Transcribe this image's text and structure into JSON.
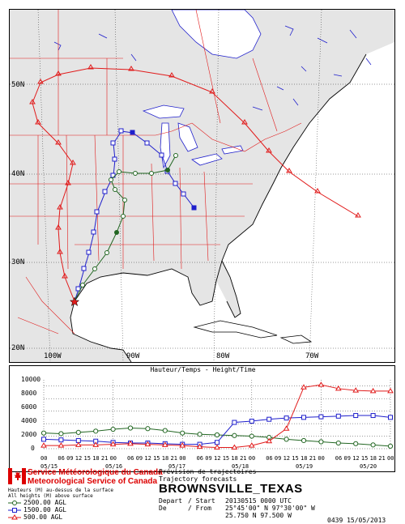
{
  "map": {
    "lat_labels": [
      "50N",
      "40N",
      "30N",
      "20N"
    ],
    "lon_labels": [
      "100W",
      "90W",
      "80W",
      "70W"
    ]
  },
  "chart": {
    "title": "Hauteur/Temps - Height/Time",
    "y_ticks": [
      "10000",
      "8000",
      "6000",
      "4000",
      "2000",
      "0"
    ],
    "hour_labels": [
      "00",
      "06",
      "09",
      "12",
      "15",
      "18",
      "21",
      "00",
      "06",
      "09",
      "12",
      "15",
      "18",
      "21",
      "00",
      "06",
      "09",
      "12",
      "15",
      "18",
      "21",
      "00",
      "06",
      "09",
      "12",
      "15",
      "18",
      "21",
      "00",
      "06",
      "09",
      "12",
      "15",
      "18",
      "21",
      "00"
    ],
    "date_labels": [
      "05/15",
      "05/16",
      "05/17",
      "05/18",
      "05/19",
      "05/20"
    ]
  },
  "chart_data": {
    "type": "line",
    "title": "Hauteur/Temps - Height/Time",
    "ylim": [
      0,
      11000
    ],
    "x_hours": [
      0,
      6,
      12,
      18,
      24,
      30,
      36,
      42,
      48,
      54,
      60,
      66,
      72,
      78,
      84,
      90,
      96,
      102,
      108,
      114,
      120
    ],
    "series": [
      {
        "name": "2500.00 AGL",
        "color": "#226622",
        "values": [
          2500,
          2400,
          2600,
          2800,
          3100,
          3300,
          3200,
          2900,
          2500,
          2300,
          2200,
          2100,
          2000,
          1800,
          1500,
          1300,
          1100,
          900,
          800,
          600,
          400
        ]
      },
      {
        "name": "1500.00 AGL",
        "color": "#1f1fcc",
        "values": [
          1500,
          1400,
          1300,
          1200,
          1000,
          900,
          900,
          800,
          700,
          700,
          1000,
          4200,
          4400,
          4700,
          4900,
          5000,
          5100,
          5200,
          5300,
          5300,
          5000
        ]
      },
      {
        "name": "500.00 AGL",
        "color": "#e11b1b",
        "values": [
          500,
          500,
          600,
          600,
          700,
          800,
          700,
          600,
          500,
          300,
          200,
          200,
          500,
          1200,
          3200,
          9800,
          10200,
          9600,
          9300,
          9200,
          9200
        ]
      }
    ]
  },
  "footer": {
    "agency_fr": "Service Météorologique du Canada",
    "agency_en": "Meteorological Service of Canada",
    "note_fr": "Hauteurs (M) au-dessus de la surface",
    "note_en": "All heights (M) above surface",
    "legend": [
      "2500.00 AGL",
      "1500.00 AGL",
      "500.00 AGL"
    ],
    "product_fr": "Prévision de trajectoires",
    "product_en": "Trajectory forecasts",
    "station": "BROWNSVILLE_TEXAS",
    "depart_label": "Depart",
    "de_label": "De",
    "start_label": "/ Start",
    "from_label": "/ From",
    "start_value": "20130515 0000 UTC",
    "from_value_dms": "25°45'00\" N 97°30'00\" W",
    "from_value_dec": "25.750 N 97.500 W",
    "code": "0439 15/05/2013"
  }
}
